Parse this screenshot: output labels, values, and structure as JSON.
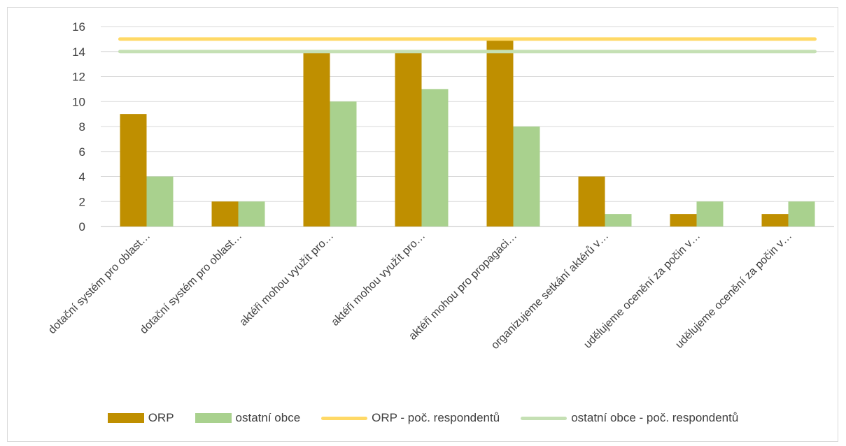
{
  "chart_data": {
    "type": "bar",
    "categories": [
      "dotační systém pro oblast…",
      "dotační systém pro oblast…",
      "aktéři mohou využít pro…",
      "aktéři mohou využít pro…",
      "aktéři mohou pro propagaci…",
      "organizujeme setkání aktérů v…",
      "udělujeme ocenění za počin v…",
      "udělujeme ocenění za počin v…"
    ],
    "series": [
      {
        "name": "ORP",
        "type": "bar",
        "color": "#bf8f00",
        "values": [
          9,
          2,
          14,
          14,
          15,
          4,
          1,
          1
        ]
      },
      {
        "name": "ostatní obce",
        "type": "bar",
        "color": "#a9d18e",
        "values": [
          4,
          2,
          10,
          11,
          8,
          1,
          2,
          2
        ]
      },
      {
        "name": "ORP - poč. respondentů",
        "type": "line",
        "color": "#ffd966",
        "values": [
          15,
          15,
          15,
          15,
          15,
          15,
          15,
          15
        ]
      },
      {
        "name": "ostatní obce - poč. respondentů",
        "type": "line",
        "color": "#c5e0b4",
        "values": [
          14,
          14,
          14,
          14,
          14,
          14,
          14,
          14
        ]
      }
    ],
    "ylim": [
      0,
      16
    ],
    "yticks": [
      0,
      2,
      4,
      6,
      8,
      10,
      12,
      14,
      16
    ],
    "grid": true,
    "legend_position": "bottom",
    "title": "",
    "xlabel": "",
    "ylabel": ""
  }
}
